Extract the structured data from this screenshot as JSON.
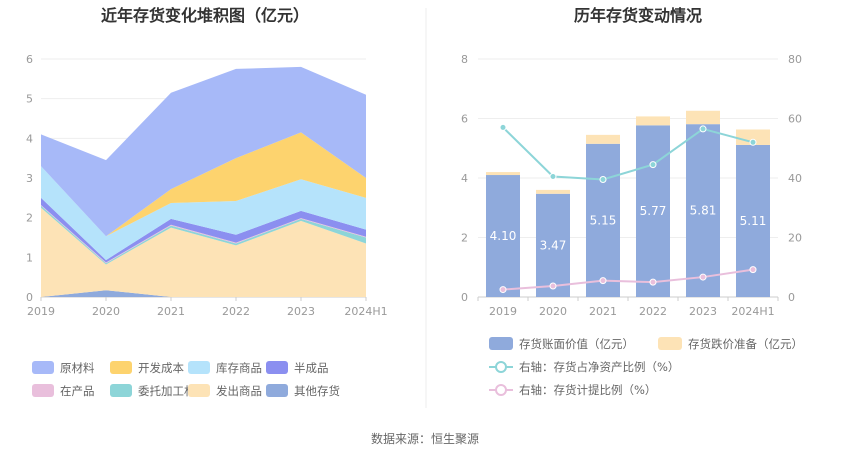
{
  "footer": {
    "source": "数据来源：恒生聚源"
  },
  "chart_data": [
    {
      "type": "area",
      "stacked": true,
      "title": "近年存货变化堆积图（亿元）",
      "categories": [
        "2019",
        "2020",
        "2021",
        "2022",
        "2023",
        "2024H1"
      ],
      "ylim": [
        0,
        6
      ],
      "yticks": [
        "0",
        "1",
        "2",
        "3",
        "4",
        "5",
        "6"
      ],
      "grid": true,
      "legend_position": "bottom",
      "series": [
        {
          "name": "其他存货",
          "color": "#8faadc",
          "values": [
            0.0,
            0.17,
            0.0,
            0.0,
            0.0,
            0.0
          ]
        },
        {
          "name": "发出商品",
          "color": "#fde3b6",
          "values": [
            2.25,
            0.65,
            1.75,
            1.3,
            1.92,
            1.35
          ]
        },
        {
          "name": "委托加工材料",
          "color": "#8dd5d8",
          "values": [
            0.05,
            0.03,
            0.05,
            0.05,
            0.05,
            0.15
          ]
        },
        {
          "name": "在产品",
          "color": "#e9bfdc",
          "values": [
            0.02,
            0.02,
            0.02,
            0.02,
            0.02,
            0.02
          ]
        },
        {
          "name": "半成品",
          "color": "#8b8ff0",
          "values": [
            0.18,
            0.06,
            0.15,
            0.2,
            0.18,
            0.18
          ]
        },
        {
          "name": "库存商品",
          "color": "#b5e3fb",
          "values": [
            0.8,
            0.6,
            0.4,
            0.85,
            0.8,
            0.8
          ]
        },
        {
          "name": "开发成本",
          "color": "#fdd36e",
          "values": [
            0.0,
            0.0,
            0.35,
            1.08,
            1.18,
            0.5
          ]
        },
        {
          "name": "原材料",
          "color": "#a7b9f8",
          "values": [
            0.8,
            1.92,
            2.43,
            2.25,
            1.65,
            2.1
          ]
        }
      ],
      "legend_order": [
        "原材料",
        "开发成本",
        "库存商品",
        "半成品",
        "在产品",
        "委托加工材料",
        "发出商品",
        "其他存货"
      ]
    },
    {
      "type": "bar",
      "title": "历年存货变动情况",
      "categories": [
        "2019",
        "2020",
        "2021",
        "2022",
        "2023",
        "2024H1"
      ],
      "ylim": [
        0,
        8
      ],
      "yticks": [
        "0",
        "2",
        "4",
        "6",
        "8"
      ],
      "y2lim": [
        0,
        80
      ],
      "y2ticks": [
        "0",
        "20",
        "40",
        "60",
        "80"
      ],
      "grid": true,
      "legend_position": "bottom",
      "series": [
        {
          "name": "存货账面价值（亿元）",
          "type": "bar",
          "color": "#8faadc",
          "values": [
            4.1,
            3.47,
            5.15,
            5.77,
            5.81,
            5.11
          ],
          "labels": [
            "4.10",
            "3.47",
            "5.15",
            "5.77",
            "5.81",
            "5.11"
          ]
        },
        {
          "name": "存货跌价准备（亿元）",
          "type": "bar",
          "stacked_on": "存货账面价值（亿元）",
          "color": "#fde3b6",
          "values": [
            0.1,
            0.13,
            0.3,
            0.3,
            0.45,
            0.52
          ]
        },
        {
          "name": "右轴：存货占净资产比例（%）",
          "type": "line",
          "axis": "right",
          "color": "#8dd5d8",
          "values": [
            57,
            40.5,
            39.5,
            44.5,
            56.5,
            52
          ]
        },
        {
          "name": "右轴：存货计提比例（%）",
          "type": "line",
          "axis": "right",
          "color": "#e9bfdc",
          "values": [
            2.5,
            3.7,
            5.5,
            5.0,
            6.7,
            9.2
          ]
        }
      ]
    }
  ]
}
